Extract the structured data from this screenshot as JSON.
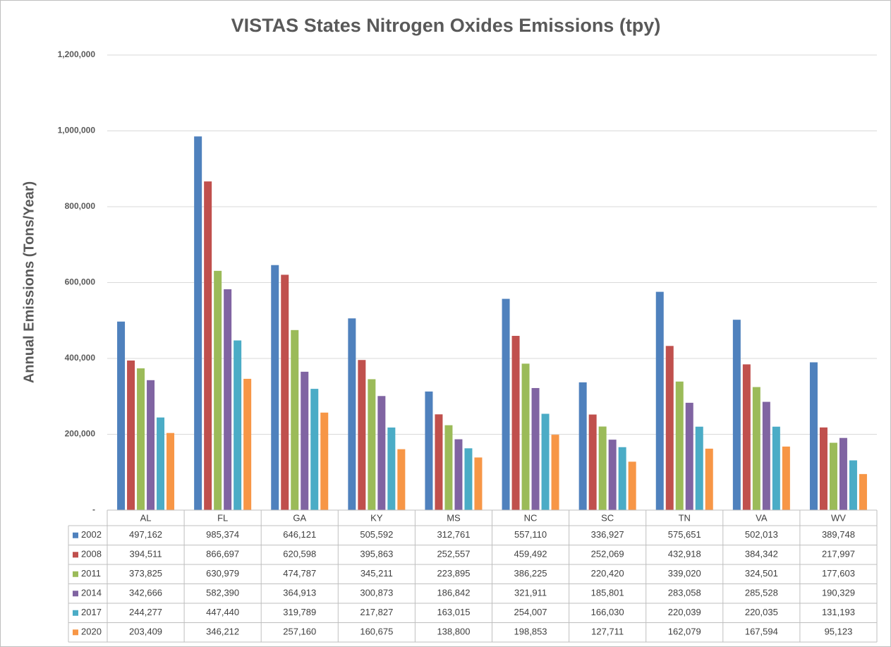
{
  "chart_data": {
    "type": "bar",
    "title": "VISTAS States Nitrogen Oxides Emissions (tpy)",
    "y_label": "Annual Emissions (Tons/Year)",
    "categories": [
      "AL",
      "FL",
      "GA",
      "KY",
      "MS",
      "NC",
      "SC",
      "TN",
      "VA",
      "WV"
    ],
    "series": [
      {
        "name": "2002",
        "color": "#4f81bd",
        "values": [
          497162,
          985374,
          646121,
          505592,
          312761,
          557110,
          336927,
          575651,
          502013,
          389748
        ],
        "value_labels": [
          "497,162",
          "985,374",
          "646,121",
          "505,592",
          "312,761",
          "557,110",
          "336,927",
          "575,651",
          "502,013",
          "389,748"
        ]
      },
      {
        "name": "2008",
        "color": "#c0504d",
        "values": [
          394511,
          866697,
          620598,
          395863,
          252557,
          459492,
          252069,
          432918,
          384342,
          217997
        ],
        "value_labels": [
          "394,511",
          "866,697",
          "620,598",
          "395,863",
          "252,557",
          "459,492",
          "252,069",
          "432,918",
          "384,342",
          "217,997"
        ]
      },
      {
        "name": "2011",
        "color": "#9bbb59",
        "values": [
          373825,
          630979,
          474787,
          345211,
          223895,
          386225,
          220420,
          339020,
          324501,
          177603
        ],
        "value_labels": [
          "373,825",
          "630,979",
          "474,787",
          "345,211",
          "223,895",
          "386,225",
          "220,420",
          "339,020",
          "324,501",
          "177,603"
        ]
      },
      {
        "name": "2014",
        "color": "#8064a2",
        "values": [
          342666,
          582390,
          364913,
          300873,
          186842,
          321911,
          185801,
          283058,
          285528,
          190329
        ],
        "value_labels": [
          "342,666",
          "582,390",
          "364,913",
          "300,873",
          "186,842",
          "321,911",
          "185,801",
          "283,058",
          "285,528",
          "190,329"
        ]
      },
      {
        "name": "2017",
        "color": "#4bacc6",
        "values": [
          244277,
          447440,
          319789,
          217827,
          163015,
          254007,
          166030,
          220039,
          220035,
          131193
        ],
        "value_labels": [
          "244,277",
          "447,440",
          "319,789",
          "217,827",
          "163,015",
          "254,007",
          "166,030",
          "220,039",
          "220,035",
          "131,193"
        ]
      },
      {
        "name": "2020",
        "color": "#f79646",
        "values": [
          203409,
          346212,
          257160,
          160675,
          138800,
          198853,
          127711,
          162079,
          167594,
          95123
        ],
        "value_labels": [
          "203,409",
          "346,212",
          "257,160",
          "160,675",
          "138,800",
          "198,853",
          "127,711",
          "162,079",
          "167,594",
          "95,123"
        ]
      }
    ],
    "ylim": [
      0,
      1200000
    ],
    "yticks": [
      {
        "value": 0,
        "label": "-"
      },
      {
        "value": 200000,
        "label": "200,000"
      },
      {
        "value": 400000,
        "label": "400,000"
      },
      {
        "value": 600000,
        "label": "600,000"
      },
      {
        "value": 800000,
        "label": "800,000"
      },
      {
        "value": 1000000,
        "label": "1,000,000"
      },
      {
        "value": 1200000,
        "label": "1,200,000"
      }
    ],
    "grid": true
  }
}
